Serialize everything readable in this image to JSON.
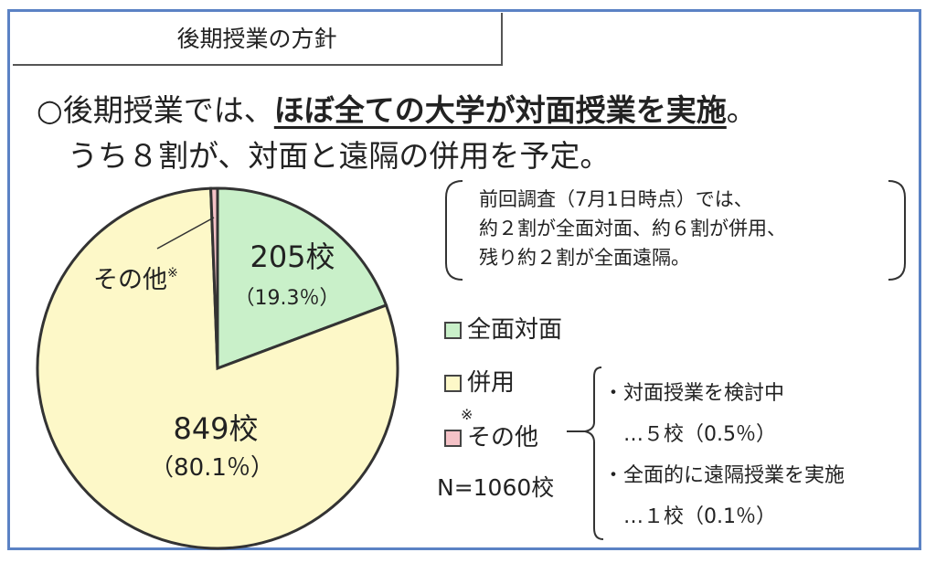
{
  "section_title": "後期授業の方針",
  "headline": {
    "line1_prefix": "○後期授業では、",
    "line1_emphasis": "ほぼ全ての大学が対面授業を実施",
    "line1_suffix": "。",
    "line2": "うち８割が、対面と遠隔の併用を予定。"
  },
  "previous_survey_note": [
    "前回調査（7月1日時点）では、",
    "約２割が全面対面、約６割が併用、",
    "残り約２割が全面遠隔。"
  ],
  "chart_data": {
    "type": "pie",
    "total_label": "N=1060校",
    "slices": [
      {
        "name": "全面対面",
        "count_label": "205校",
        "percent_label": "（19.3％）",
        "value": 19.3,
        "color": "#c9f0c9"
      },
      {
        "name": "併用",
        "count_label": "849校",
        "percent_label": "（80.1％）",
        "value": 80.1,
        "color": "#fdf8c8"
      },
      {
        "name": "その他",
        "count_label": "",
        "percent_label": "",
        "value": 0.6,
        "color": "#f5c2c7"
      }
    ],
    "other_label": "その他",
    "note_mark": "※",
    "legend": [
      "全面対面",
      "併用",
      "その他"
    ]
  },
  "other_breakdown": {
    "items": [
      {
        "label": "・対面授業を検討中",
        "value": "…５校（0.5％）"
      },
      {
        "label": "・全面的に遠隔授業を実施",
        "value": "…１校（0.1％）"
      }
    ]
  },
  "colors": {
    "frame": "#5b82c4",
    "outline": "#333333"
  }
}
